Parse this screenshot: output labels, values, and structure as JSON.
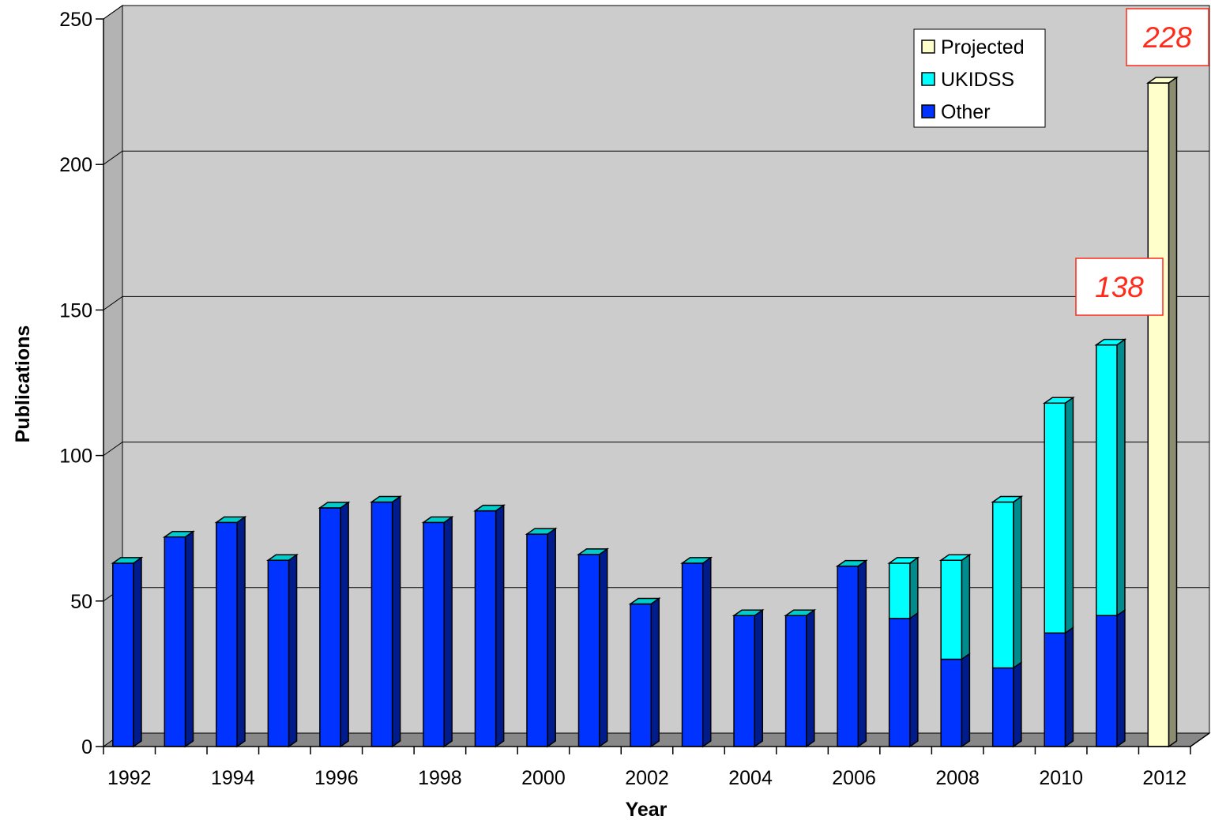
{
  "chart_data": {
    "type": "bar",
    "stacked": true,
    "three_d": true,
    "title": "",
    "xlabel": "Year",
    "ylabel": "Publications",
    "ylim": [
      0,
      250
    ],
    "yticks": [
      0,
      50,
      100,
      150,
      200,
      250
    ],
    "grid": true,
    "legend_position": "top-right",
    "categories": [
      "1992",
      "1993",
      "1994",
      "1995",
      "1996",
      "1997",
      "1998",
      "1999",
      "2000",
      "2001",
      "2002",
      "2003",
      "2004",
      "2005",
      "2006",
      "2007",
      "2008",
      "2009",
      "2010",
      "2011",
      "2012"
    ],
    "x_tick_labels": [
      "1992",
      "1994",
      "1996",
      "1998",
      "2000",
      "2002",
      "2004",
      "2006",
      "2008",
      "2010",
      "2012"
    ],
    "series": [
      {
        "name": "Other",
        "color": "#0033ff",
        "values": [
          63,
          72,
          77,
          64,
          82,
          84,
          77,
          81,
          73,
          66,
          49,
          63,
          45,
          45,
          62,
          44,
          30,
          27,
          39,
          45,
          0
        ]
      },
      {
        "name": "UKIDSS",
        "color": "#00ffff",
        "values": [
          0,
          0,
          0,
          0,
          0,
          0,
          0,
          0,
          0,
          0,
          0,
          0,
          0,
          0,
          0,
          19,
          34,
          57,
          79,
          93,
          0
        ]
      },
      {
        "name": "Projected",
        "color": "#ffffcc",
        "values": [
          0,
          0,
          0,
          0,
          0,
          0,
          0,
          0,
          0,
          0,
          0,
          0,
          0,
          0,
          0,
          0,
          0,
          0,
          0,
          0,
          228
        ]
      }
    ],
    "legend": [
      {
        "name": "Projected",
        "color": "#ffffcc"
      },
      {
        "name": "UKIDSS",
        "color": "#00ffff"
      },
      {
        "name": "Other",
        "color": "#0033ff"
      }
    ],
    "annotations": [
      {
        "text": "138",
        "category": "2011",
        "value": 138
      },
      {
        "text": "228",
        "category": "2012",
        "value": 228
      }
    ],
    "colors": {
      "plot_background": "#cccccc",
      "floor": "#888888",
      "callout_text": "#ff2a1a",
      "callout_border": "#ff2a1a"
    }
  }
}
